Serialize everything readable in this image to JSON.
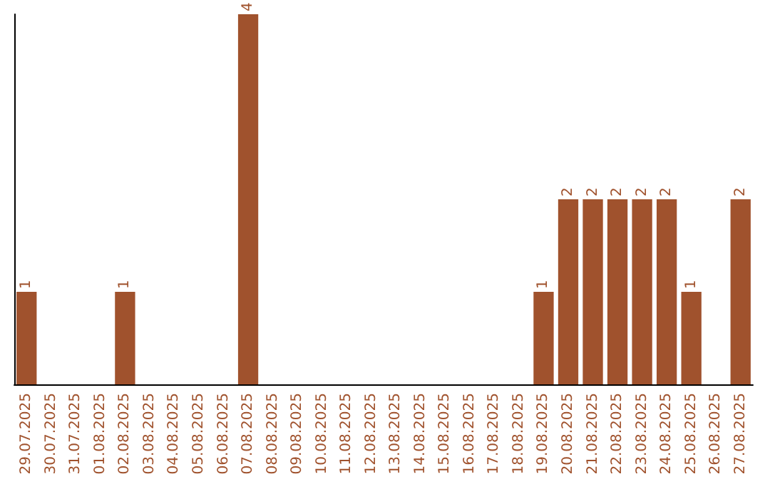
{
  "chart_data": {
    "type": "bar",
    "categories": [
      "29.07.2025",
      "30.07.2025",
      "31.07.2025",
      "01.08.2025",
      "02.08.2025",
      "03.08.2025",
      "04.08.2025",
      "05.08.2025",
      "06.08.2025",
      "07.08.2025",
      "08.08.2025",
      "09.08.2025",
      "10.08.2025",
      "11.08.2025",
      "12.08.2025",
      "13.08.2025",
      "14.08.2025",
      "15.08.2025",
      "16.08.2025",
      "17.08.2025",
      "18.08.2025",
      "19.08.2025",
      "20.08.2025",
      "21.08.2025",
      "22.08.2025",
      "23.08.2025",
      "24.08.2025",
      "25.08.2025",
      "26.08.2025",
      "27.08.2025"
    ],
    "values": [
      1,
      0,
      0,
      0,
      1,
      0,
      0,
      0,
      0,
      4,
      0,
      0,
      0,
      0,
      0,
      0,
      0,
      0,
      0,
      0,
      0,
      1,
      2,
      2,
      2,
      2,
      2,
      1,
      0,
      2
    ],
    "value_labels": [
      "1",
      null,
      null,
      null,
      "1",
      null,
      null,
      null,
      null,
      "4",
      null,
      null,
      null,
      null,
      null,
      null,
      null,
      null,
      null,
      null,
      null,
      "1",
      "2",
      "2",
      "2",
      "2",
      "2",
      "1",
      null,
      "2"
    ],
    "color": "#a0522d",
    "grid": false,
    "tick_labels": "x"
  }
}
